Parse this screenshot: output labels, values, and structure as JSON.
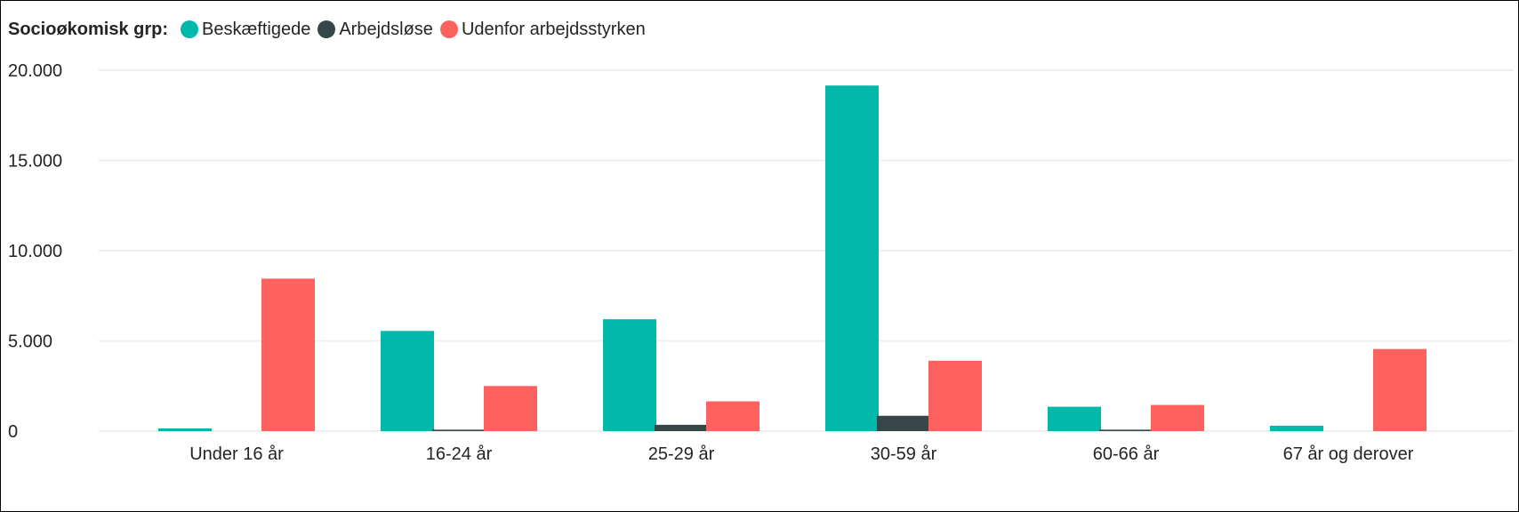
{
  "legend": {
    "title": "Socioøkomisk grp:",
    "items": [
      {
        "label": "Beskæftigede",
        "color": "#01B8AA"
      },
      {
        "label": "Arbejdsløse",
        "color": "#374649"
      },
      {
        "label": "Udenfor arbejdsstyrken",
        "color": "#FD625E"
      }
    ]
  },
  "chart_data": {
    "type": "bar",
    "categories": [
      "Under 16 år",
      "16-24 år",
      "25-29 år",
      "30-59 år",
      "60-66 år",
      "67 år og derover"
    ],
    "series": [
      {
        "name": "Beskæftigede",
        "color": "#01B8AA",
        "values": [
          150,
          5550,
          6200,
          19150,
          1350,
          300
        ]
      },
      {
        "name": "Arbejdsløse",
        "color": "#374649",
        "values": [
          0,
          80,
          350,
          850,
          80,
          0
        ]
      },
      {
        "name": "Udenfor arbejdsstyrken",
        "color": "#FD625E",
        "values": [
          8450,
          2500,
          1650,
          3900,
          1450,
          4550
        ]
      }
    ],
    "ylim": [
      0,
      20000
    ],
    "yticks": [
      0,
      5000,
      10000,
      15000,
      20000
    ],
    "ytick_labels": [
      "0",
      "5.000",
      "10.000",
      "15.000",
      "20.000"
    ],
    "grid": true,
    "legend_position": "top-left"
  }
}
